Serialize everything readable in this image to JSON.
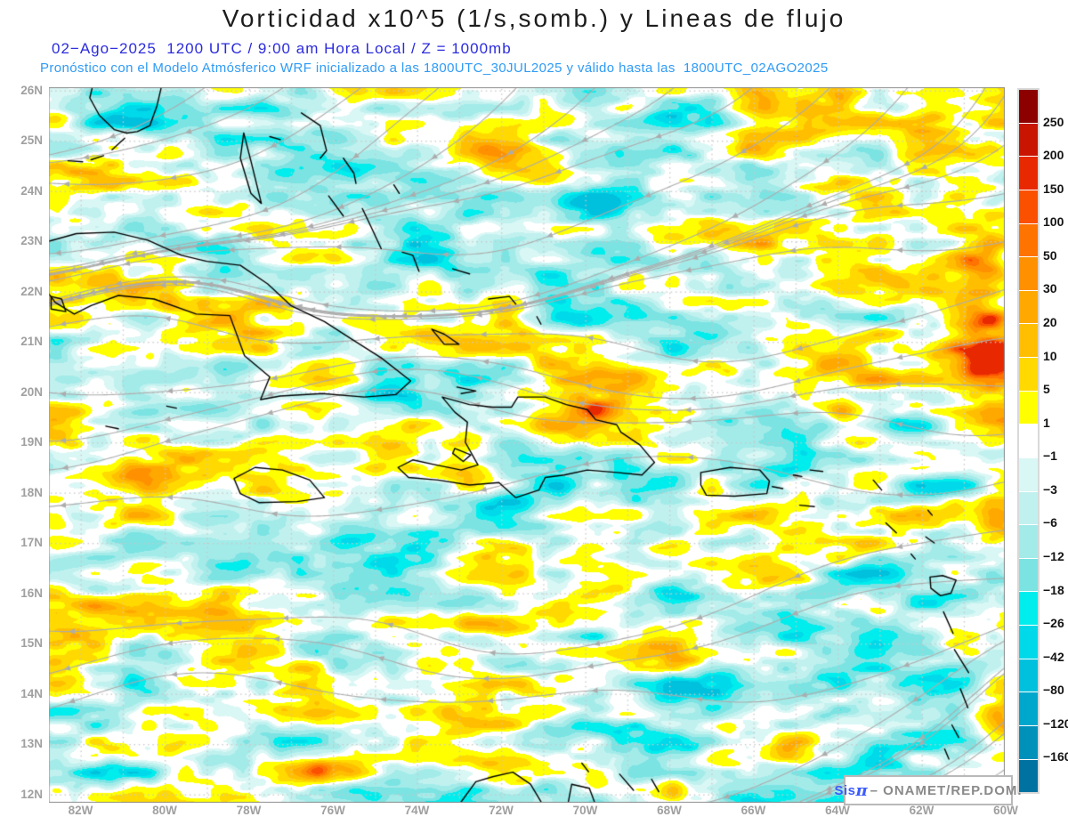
{
  "header": {
    "title": "Vorticidad x10^5 (1/s,somb.) y Lineas de flujo",
    "subtitle1": "02−Ago−2025  1200 UTC / 9:00 am Hora Local / Z = 1000mb",
    "subtitle2": "Pronóstico con el Modelo Atmósferico WRF inicializado a las 1800UTC_30JUL2025 y válido hasta las  1800UTC_02AGO2025",
    "title_color": "#1c1c1c",
    "subtitle1_color": "#2b2bdd",
    "subtitle2_color": "#2f9bf5"
  },
  "map": {
    "extent": {
      "lon_min": -82.75,
      "lon_max": -59.98,
      "lat_min": 11.83,
      "lat_max": 26.06
    },
    "grid_interval_deg": 1,
    "lat_ticks": [
      {
        "label": "26N",
        "deg": 26
      },
      {
        "label": "25N",
        "deg": 25
      },
      {
        "label": "24N",
        "deg": 24
      },
      {
        "label": "23N",
        "deg": 23
      },
      {
        "label": "22N",
        "deg": 22
      },
      {
        "label": "21N",
        "deg": 21
      },
      {
        "label": "20N",
        "deg": 20
      },
      {
        "label": "19N",
        "deg": 19
      },
      {
        "label": "18N",
        "deg": 18
      },
      {
        "label": "17N",
        "deg": 17
      },
      {
        "label": "16N",
        "deg": 16
      },
      {
        "label": "15N",
        "deg": 15
      },
      {
        "label": "14N",
        "deg": 14
      },
      {
        "label": "13N",
        "deg": 13
      },
      {
        "label": "12N",
        "deg": 12
      }
    ],
    "lon_ticks": [
      {
        "label": "82W",
        "deg": -82
      },
      {
        "label": "80W",
        "deg": -80
      },
      {
        "label": "78W",
        "deg": -78
      },
      {
        "label": "76W",
        "deg": -76
      },
      {
        "label": "74W",
        "deg": -74
      },
      {
        "label": "72W",
        "deg": -72
      },
      {
        "label": "70W",
        "deg": -70
      },
      {
        "label": "68W",
        "deg": -68
      },
      {
        "label": "66W",
        "deg": -66
      },
      {
        "label": "64W",
        "deg": -64
      },
      {
        "label": "62W",
        "deg": -62
      },
      {
        "label": "60W",
        "deg": -60
      }
    ],
    "style": {
      "frame": "#8f8f8f",
      "grid": "#c8c8c8",
      "stream": "#acacac",
      "coast": "#000000",
      "axis_label": "#a0a0a0"
    },
    "coastlines": [
      [
        [
          -82.75,
          23.0
        ],
        [
          -82.1,
          23.15
        ],
        [
          -81.2,
          23.18
        ],
        [
          -80.4,
          23.02
        ],
        [
          -79.6,
          22.72
        ],
        [
          -79.0,
          22.6
        ],
        [
          -78.2,
          22.52
        ],
        [
          -77.55,
          22.15
        ],
        [
          -77.0,
          21.72
        ],
        [
          -76.2,
          21.4
        ],
        [
          -75.55,
          21.05
        ],
        [
          -74.85,
          20.68
        ],
        [
          -74.15,
          20.22
        ],
        [
          -74.5,
          19.95
        ],
        [
          -75.25,
          19.9
        ],
        [
          -76.25,
          19.97
        ],
        [
          -77.25,
          19.92
        ],
        [
          -77.72,
          19.85
        ],
        [
          -77.5,
          20.3
        ],
        [
          -78.1,
          20.72
        ],
        [
          -78.45,
          21.52
        ],
        [
          -79.25,
          21.55
        ],
        [
          -80.25,
          21.85
        ],
        [
          -81.1,
          21.92
        ],
        [
          -81.75,
          21.72
        ],
        [
          -82.15,
          21.55
        ],
        [
          -82.6,
          21.78
        ],
        [
          -82.75,
          21.95
        ]
      ],
      [
        [
          -82.7,
          21.9
        ],
        [
          -82.45,
          21.85
        ],
        [
          -82.35,
          21.6
        ],
        [
          -82.7,
          21.65
        ],
        [
          -82.7,
          21.9
        ]
      ],
      [
        [
          -79.95,
          19.72
        ],
        [
          -79.72,
          19.68
        ]
      ],
      [
        [
          -81.4,
          19.32
        ],
        [
          -81.1,
          19.27
        ]
      ],
      [
        [
          -78.35,
          18.28
        ],
        [
          -77.85,
          18.5
        ],
        [
          -77.2,
          18.45
        ],
        [
          -76.55,
          18.25
        ],
        [
          -76.2,
          17.9
        ],
        [
          -76.85,
          17.82
        ],
        [
          -77.75,
          17.8
        ],
        [
          -78.2,
          17.98
        ],
        [
          -78.35,
          18.28
        ]
      ],
      [
        [
          -73.4,
          19.9
        ],
        [
          -72.75,
          19.75
        ],
        [
          -72.2,
          19.7
        ],
        [
          -71.75,
          19.7
        ],
        [
          -71.6,
          19.9
        ],
        [
          -70.95,
          19.9
        ],
        [
          -70.45,
          19.75
        ],
        [
          -69.95,
          19.65
        ],
        [
          -69.75,
          19.45
        ],
        [
          -69.25,
          19.35
        ],
        [
          -69.15,
          19.2
        ],
        [
          -68.7,
          18.95
        ],
        [
          -68.35,
          18.6
        ],
        [
          -68.65,
          18.35
        ],
        [
          -69.25,
          18.4
        ],
        [
          -69.95,
          18.45
        ],
        [
          -70.5,
          18.35
        ],
        [
          -70.95,
          18.3
        ],
        [
          -71.1,
          18.05
        ],
        [
          -71.65,
          17.9
        ],
        [
          -72.05,
          18.2
        ],
        [
          -72.75,
          18.15
        ],
        [
          -73.5,
          18.25
        ],
        [
          -74.2,
          18.3
        ],
        [
          -74.45,
          18.5
        ],
        [
          -74.1,
          18.65
        ],
        [
          -73.55,
          18.55
        ],
        [
          -72.95,
          18.45
        ],
        [
          -72.55,
          18.55
        ],
        [
          -72.85,
          19.0
        ],
        [
          -72.8,
          19.4
        ],
        [
          -73.1,
          19.6
        ],
        [
          -73.4,
          19.9
        ]
      ],
      [
        [
          -73.1,
          18.88
        ],
        [
          -72.72,
          18.75
        ],
        [
          -72.9,
          18.62
        ],
        [
          -73.15,
          18.78
        ],
        [
          -73.1,
          18.88
        ]
      ],
      [
        [
          -73.05,
          20.1
        ],
        [
          -72.6,
          20.02
        ],
        [
          -72.95,
          19.97
        ]
      ],
      [
        [
          -67.25,
          18.4
        ],
        [
          -66.55,
          18.5
        ],
        [
          -65.85,
          18.45
        ],
        [
          -65.62,
          18.23
        ],
        [
          -65.68,
          17.98
        ],
        [
          -66.45,
          17.93
        ],
        [
          -67.12,
          17.95
        ],
        [
          -67.25,
          18.15
        ],
        [
          -67.25,
          18.4
        ]
      ],
      [
        [
          -81.72,
          26.06
        ],
        [
          -81.78,
          25.85
        ],
        [
          -81.55,
          25.5
        ],
        [
          -81.2,
          25.22
        ],
        [
          -80.9,
          25.15
        ]
      ],
      [
        [
          -80.08,
          26.06
        ],
        [
          -80.18,
          25.7
        ],
        [
          -80.35,
          25.3
        ],
        [
          -80.65,
          25.18
        ],
        [
          -80.9,
          25.15
        ]
      ],
      [
        [
          -80.95,
          25.05
        ],
        [
          -81.25,
          24.82
        ]
      ],
      [
        [
          -81.45,
          24.7
        ],
        [
          -81.75,
          24.62
        ]
      ],
      [
        [
          -81.95,
          24.58
        ],
        [
          -82.3,
          24.6
        ]
      ],
      [
        [
          -78.12,
          25.15
        ],
        [
          -77.95,
          24.6
        ],
        [
          -77.7,
          23.75
        ],
        [
          -77.95,
          23.95
        ],
        [
          -78.2,
          24.65
        ],
        [
          -78.12,
          25.15
        ]
      ],
      [
        [
          -77.5,
          25.08
        ],
        [
          -77.25,
          25.02
        ]
      ],
      [
        [
          -76.75,
          25.55
        ],
        [
          -76.3,
          25.3
        ],
        [
          -76.15,
          24.8
        ],
        [
          -76.3,
          24.65
        ]
      ],
      [
        [
          -75.75,
          24.65
        ],
        [
          -75.5,
          24.35
        ],
        [
          -75.45,
          24.15
        ]
      ],
      [
        [
          -76.1,
          23.9
        ],
        [
          -75.75,
          23.5
        ]
      ],
      [
        [
          -75.3,
          23.65
        ],
        [
          -75.1,
          23.3
        ],
        [
          -74.85,
          22.85
        ]
      ],
      [
        [
          -74.55,
          24.12
        ],
        [
          -74.42,
          23.95
        ]
      ],
      [
        [
          -74.35,
          22.78
        ],
        [
          -74.1,
          22.72
        ],
        [
          -73.95,
          22.4
        ]
      ],
      [
        [
          -73.15,
          22.45
        ],
        [
          -72.75,
          22.35
        ]
      ],
      [
        [
          -73.65,
          21.25
        ],
        [
          -73.35,
          21.15
        ],
        [
          -73.0,
          20.95
        ],
        [
          -73.35,
          20.95
        ],
        [
          -73.65,
          21.25
        ]
      ],
      [
        [
          -72.3,
          21.85
        ],
        [
          -71.8,
          21.9
        ],
        [
          -71.65,
          21.75
        ]
      ],
      [
        [
          -71.15,
          21.5
        ],
        [
          -71.05,
          21.35
        ]
      ],
      [
        [
          -65.55,
          18.12
        ],
        [
          -65.3,
          18.08
        ]
      ],
      [
        [
          -65.05,
          18.35
        ],
        [
          -64.85,
          18.32
        ]
      ],
      [
        [
          -64.65,
          18.45
        ],
        [
          -64.35,
          18.42
        ]
      ],
      [
        [
          -64.9,
          17.75
        ],
        [
          -64.55,
          17.72
        ]
      ],
      [
        [
          -63.15,
          18.25
        ],
        [
          -62.95,
          18.05
        ]
      ],
      [
        [
          -62.85,
          17.4
        ],
        [
          -62.6,
          17.2
        ]
      ],
      [
        [
          -62.25,
          16.78
        ],
        [
          -62.15,
          16.68
        ]
      ],
      [
        [
          -61.85,
          17.65
        ],
        [
          -61.75,
          17.55
        ]
      ],
      [
        [
          -61.9,
          17.12
        ],
        [
          -61.7,
          17.0
        ]
      ],
      [
        [
          -61.8,
          16.32
        ],
        [
          -61.5,
          16.35
        ],
        [
          -61.18,
          16.26
        ],
        [
          -61.3,
          16.0
        ],
        [
          -61.55,
          15.95
        ],
        [
          -61.78,
          16.1
        ],
        [
          -61.8,
          16.32
        ]
      ],
      [
        [
          -61.48,
          15.63
        ],
        [
          -61.25,
          15.2
        ]
      ],
      [
        [
          -61.22,
          14.88
        ],
        [
          -60.88,
          14.42
        ]
      ],
      [
        [
          -61.08,
          14.1
        ],
        [
          -60.9,
          13.72
        ]
      ],
      [
        [
          -61.28,
          13.38
        ],
        [
          -61.12,
          13.13
        ]
      ],
      [
        [
          -61.45,
          12.9
        ],
        [
          -61.35,
          12.7
        ]
      ],
      [
        [
          -61.78,
          12.25
        ],
        [
          -61.6,
          12.02
        ]
      ],
      [
        [
          -72.95,
          11.85
        ],
        [
          -72.6,
          12.25
        ],
        [
          -72.2,
          12.35
        ],
        [
          -71.72,
          12.44
        ],
        [
          -71.3,
          12.2
        ],
        [
          -71.05,
          11.85
        ]
      ],
      [
        [
          -70.4,
          11.85
        ],
        [
          -70.32,
          12.2
        ],
        [
          -69.9,
          12.12
        ],
        [
          -69.78,
          11.85
        ]
      ],
      [
        [
          -70.08,
          12.62
        ],
        [
          -69.92,
          12.45
        ]
      ],
      [
        [
          -69.18,
          12.4
        ],
        [
          -68.85,
          12.08
        ]
      ],
      [
        [
          -68.42,
          12.3
        ],
        [
          -68.25,
          12.05
        ]
      ]
    ]
  },
  "colorbar": {
    "labels": [
      "250",
      "200",
      "150",
      "100",
      "50",
      "30",
      "20",
      "10",
      "5",
      "1",
      "−1",
      "−3",
      "−6",
      "−12",
      "−18",
      "−26",
      "−42",
      "−80",
      "−120",
      "−160"
    ],
    "colors": [
      "#8c0000",
      "#c81400",
      "#e82800",
      "#fa5000",
      "#ff7300",
      "#ff9100",
      "#ffa900",
      "#ffbf00",
      "#ffd900",
      "#ffff00",
      "#ffffff",
      "#d9f7f5",
      "#c0f1ef",
      "#a3ebe9",
      "#7ce3e3",
      "#00eded",
      "#00d9e9",
      "#00c1dd",
      "#00a7cd",
      "#0091bb",
      "#0072a1"
    ]
  },
  "attribution": {
    "brand": "Sis",
    "pi": "π",
    "suffix": "– ONAMET/REP.DOM."
  }
}
